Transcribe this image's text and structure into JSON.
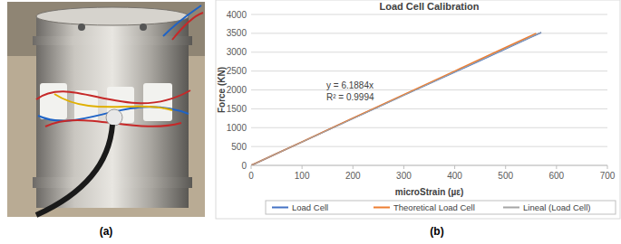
{
  "panel_labels": [
    "(a)",
    "(b)"
  ],
  "chart_data": {
    "type": "line",
    "title": "Load Cell Calibration",
    "x_label": "microStrain (µε)",
    "y_label": "Force (KN)",
    "annotations": [
      "y = 6.1884x",
      "R² = 0.9994"
    ],
    "xlim": [
      0,
      700
    ],
    "xticks": [
      0,
      100,
      200,
      300,
      400,
      500,
      600,
      700
    ],
    "ylim": [
      0,
      4000
    ],
    "yticks": [
      0,
      500,
      1000,
      1500,
      2000,
      2500,
      3000,
      3500,
      4000
    ],
    "grid": true,
    "legend": "bottom",
    "series": [
      {
        "name": "Load Cell",
        "color": "#4472c4",
        "line_style": "solid",
        "x": [
          0,
          10,
          50,
          100,
          150,
          200,
          250,
          300,
          350,
          400,
          450,
          500,
          550,
          570
        ],
        "values": [
          0,
          60,
          310,
          620,
          935,
          1245,
          1550,
          1860,
          2165,
          2470,
          2780,
          3090,
          3400,
          3520
        ]
      },
      {
        "name": "Theoretical Load Cell",
        "color": "#ed7d31",
        "line_style": "solid",
        "x": [
          0,
          100,
          200,
          300,
          400,
          500,
          560
        ],
        "values": [
          0,
          625,
          1250,
          1875,
          2500,
          3125,
          3500
        ]
      },
      {
        "name": "Lineal (Load Cell)",
        "color": "#a5a5a5",
        "line_style": "solid",
        "x": [
          0,
          570
        ],
        "values": [
          0,
          3527
        ]
      }
    ]
  }
}
